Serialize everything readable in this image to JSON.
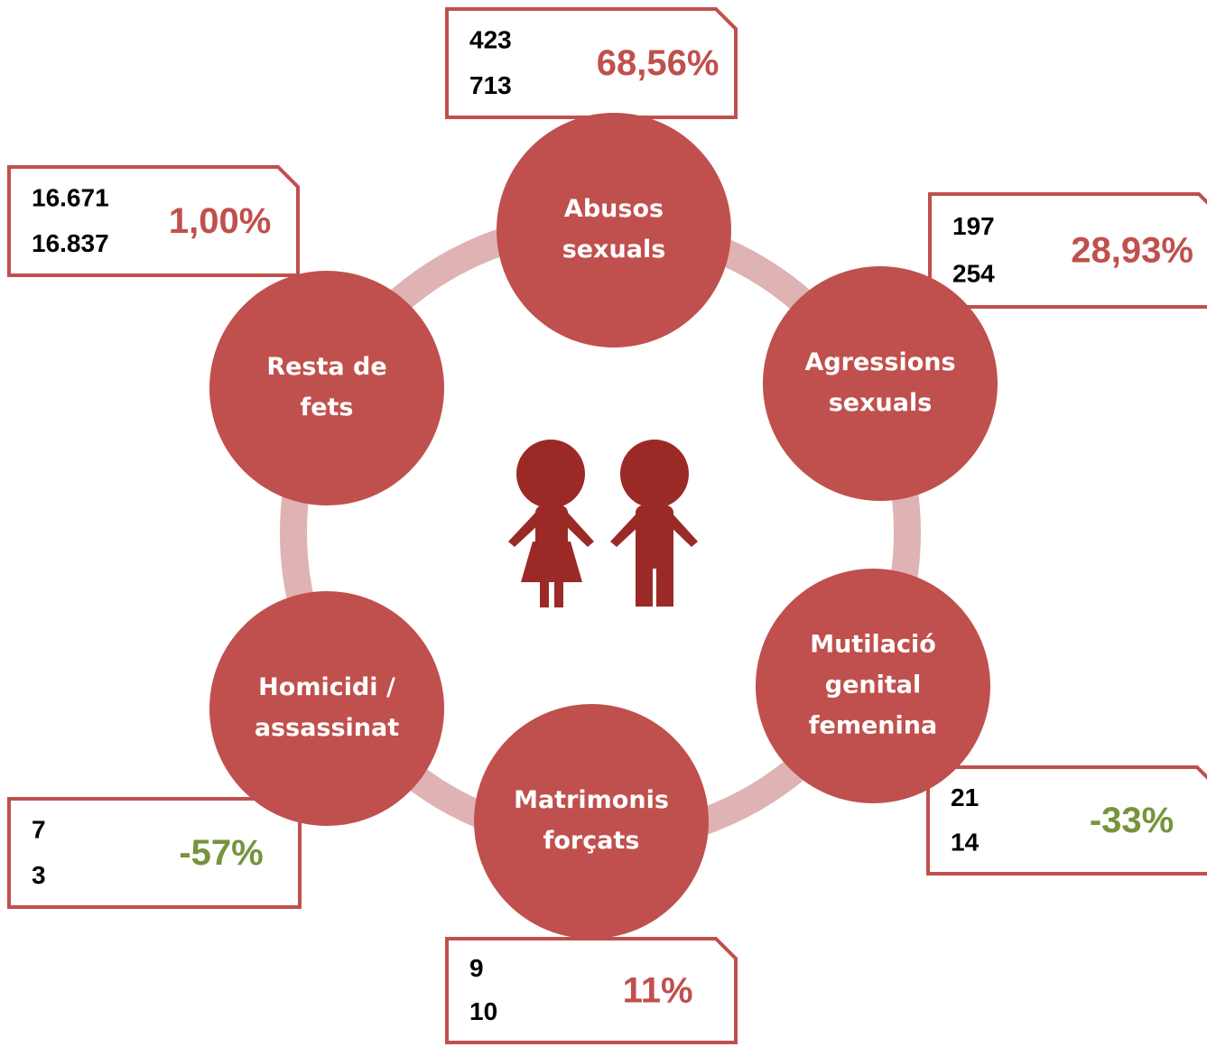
{
  "nodes": [
    {
      "label": [
        "Abusos",
        "sexuals"
      ],
      "values": [
        "423",
        "713"
      ],
      "change": "68,56%",
      "color": "#c0504d"
    },
    {
      "label": [
        "Agressions",
        "sexuals"
      ],
      "values": [
        "197",
        "254"
      ],
      "change": "28,93%",
      "color": "#c0504d"
    },
    {
      "label": [
        "Mutilació",
        "genital",
        "femenina"
      ],
      "values": [
        "21",
        "14"
      ],
      "change": "-33%",
      "color": "#77933c"
    },
    {
      "label": [
        "Matrimonis",
        "forçats"
      ],
      "values": [
        "9",
        "10"
      ],
      "change": "11%",
      "color": "#c0504d"
    },
    {
      "label": [
        "Homicidi /",
        "assassinat"
      ],
      "values": [
        "7",
        "3"
      ],
      "change": "-57%",
      "color": "#77933c"
    },
    {
      "label": [
        "Resta de",
        "fets"
      ],
      "values": [
        "16.671",
        "16.837"
      ],
      "change": "1,00%",
      "color": "#c0504d"
    }
  ]
}
